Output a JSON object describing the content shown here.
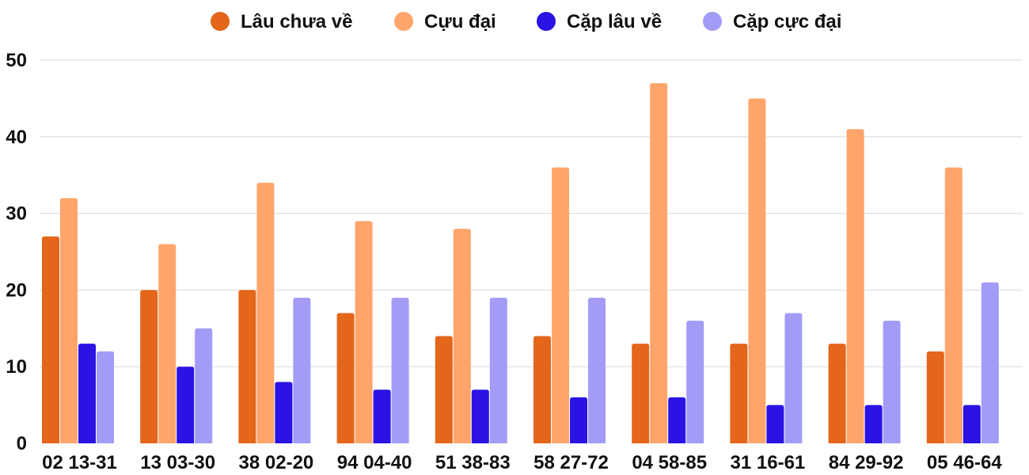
{
  "chart_data": {
    "type": "bar",
    "title": "",
    "xlabel": "",
    "ylabel": "",
    "ylim": [
      0,
      50
    ],
    "yticks": [
      0,
      10,
      20,
      30,
      40,
      50
    ],
    "legend_position": "top-center",
    "grid": true,
    "categories": [
      "02 13-31",
      "13 03-30",
      "38 02-20",
      "94 04-40",
      "51 38-83",
      "58 27-72",
      "04 58-85",
      "31 16-61",
      "84 29-92",
      "05 46-64"
    ],
    "series": [
      {
        "name": "Lâu chưa về",
        "color": "#e3661a",
        "values": [
          27,
          20,
          20,
          17,
          14,
          14,
          13,
          13,
          13,
          12
        ]
      },
      {
        "name": "Cựu đại",
        "color": "#ffa56b",
        "values": [
          32,
          26,
          34,
          29,
          28,
          36,
          47,
          45,
          41,
          36
        ]
      },
      {
        "name": "Cặp lâu về",
        "color": "#2a13e3",
        "values": [
          13,
          10,
          8,
          7,
          7,
          6,
          6,
          5,
          5,
          5
        ]
      },
      {
        "name": "Cặp cực đại",
        "color": "#a29cf7",
        "values": [
          12,
          15,
          19,
          19,
          19,
          19,
          16,
          17,
          16,
          21
        ]
      }
    ]
  }
}
